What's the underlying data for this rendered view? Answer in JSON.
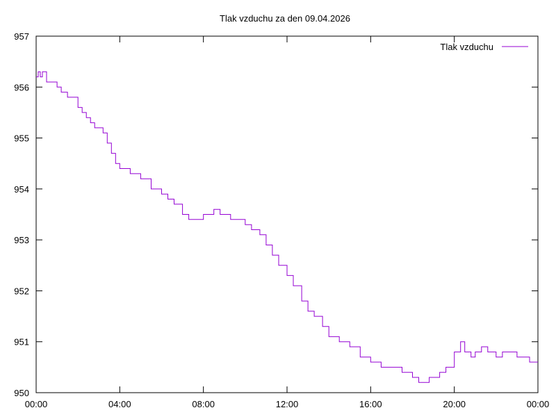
{
  "chart_data": {
    "type": "line",
    "title": "Tlak vzduchu za den 09.04.2026",
    "xlabel": "",
    "ylabel": "",
    "x_ticks": [
      "00:00",
      "04:00",
      "08:00",
      "12:00",
      "16:00",
      "20:00",
      "00:00"
    ],
    "y_ticks": [
      "950",
      "951",
      "952",
      "953",
      "954",
      "955",
      "956",
      "957"
    ],
    "xlim_hours": [
      0,
      24
    ],
    "ylim": [
      950,
      957
    ],
    "grid": false,
    "legend_position": "top-right",
    "series": [
      {
        "name": "Tlak vzduchu",
        "color": "#9400d3",
        "x_hours": [
          0.0,
          0.1,
          0.2,
          0.3,
          0.5,
          1.0,
          1.2,
          1.5,
          1.8,
          2.0,
          2.2,
          2.4,
          2.6,
          2.8,
          3.0,
          3.2,
          3.4,
          3.6,
          3.8,
          4.0,
          4.2,
          4.5,
          5.0,
          5.5,
          6.0,
          6.3,
          6.6,
          7.0,
          7.3,
          7.6,
          7.8,
          8.0,
          8.2,
          8.5,
          8.8,
          9.0,
          9.3,
          9.5,
          10.0,
          10.3,
          10.7,
          11.0,
          11.3,
          11.6,
          12.0,
          12.3,
          12.7,
          13.0,
          13.3,
          13.7,
          14.0,
          14.5,
          15.0,
          15.5,
          16.0,
          16.5,
          17.0,
          17.5,
          18.0,
          18.3,
          18.6,
          18.8,
          19.0,
          19.3,
          19.6,
          20.0,
          20.3,
          20.5,
          20.8,
          21.0,
          21.3,
          21.6,
          22.0,
          22.3,
          22.6,
          23.0,
          23.3,
          23.6,
          24.0
        ],
        "values": [
          956.2,
          956.3,
          956.2,
          956.3,
          956.1,
          956.0,
          955.9,
          955.8,
          955.8,
          955.6,
          955.5,
          955.4,
          955.3,
          955.2,
          955.2,
          955.1,
          954.9,
          954.7,
          954.5,
          954.4,
          954.4,
          954.3,
          954.2,
          954.0,
          953.9,
          953.8,
          953.7,
          953.5,
          953.4,
          953.4,
          953.4,
          953.5,
          953.5,
          953.6,
          953.5,
          953.5,
          953.4,
          953.4,
          953.3,
          953.2,
          953.1,
          952.9,
          952.7,
          952.5,
          952.3,
          952.1,
          951.8,
          951.6,
          951.5,
          951.3,
          951.1,
          951.0,
          950.9,
          950.7,
          950.6,
          950.5,
          950.5,
          950.4,
          950.3,
          950.2,
          950.2,
          950.3,
          950.3,
          950.4,
          950.5,
          950.8,
          951.0,
          950.8,
          950.7,
          950.8,
          950.9,
          950.8,
          950.7,
          950.8,
          950.8,
          950.7,
          950.7,
          950.6,
          950.6
        ]
      }
    ]
  }
}
